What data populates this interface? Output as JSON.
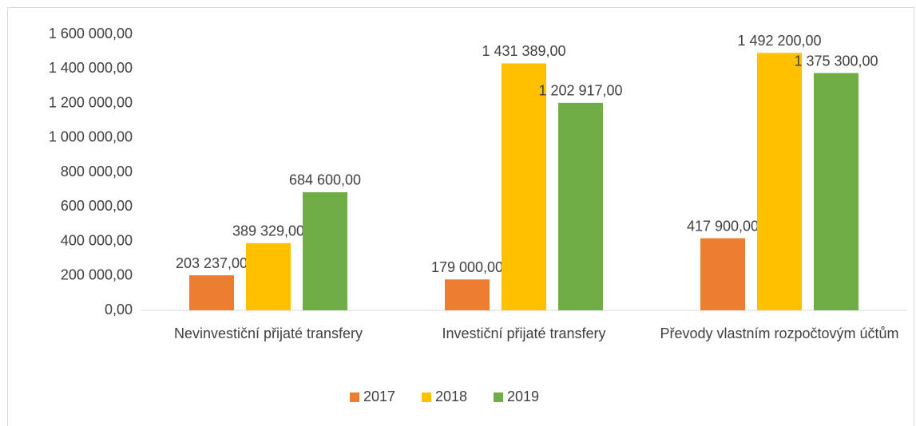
{
  "chart_data": {
    "type": "bar",
    "categories": [
      "Nevinvestiční přijaté transfery",
      "Investiční přijaté transfery",
      "Převody vlastním rozpočtovým účtům"
    ],
    "series": [
      {
        "name": "2017",
        "color": "#ED7D31",
        "values": [
          203237,
          179000,
          417900
        ],
        "value_labels": [
          "203 237,00",
          "179 000,00",
          "417 900,00"
        ]
      },
      {
        "name": "2018",
        "color": "#FFC000",
        "values": [
          389329,
          1431389,
          1492200
        ],
        "value_labels": [
          "389 329,00",
          "1 431 389,00",
          "1 492 200,00"
        ]
      },
      {
        "name": "2019",
        "color": "#70AD47",
        "values": [
          684600,
          1202917,
          1375300
        ],
        "value_labels": [
          "684 600,00",
          "1 202 917,00",
          "1 375 300,00"
        ]
      }
    ],
    "ylim": [
      0,
      1600000
    ],
    "yticks": [
      {
        "value": 0,
        "label": "0,00"
      },
      {
        "value": 200000,
        "label": "200 000,00"
      },
      {
        "value": 400000,
        "label": "400 000,00"
      },
      {
        "value": 600000,
        "label": "600 000,00"
      },
      {
        "value": 800000,
        "label": "800 000,00"
      },
      {
        "value": 1000000,
        "label": "1 000 000,00"
      },
      {
        "value": 1200000,
        "label": "1 200 000,00"
      },
      {
        "value": 1400000,
        "label": "1 400 000,00"
      },
      {
        "value": 1600000,
        "label": "1 600 000,00"
      }
    ],
    "grid": false,
    "legend": "bottom"
  }
}
